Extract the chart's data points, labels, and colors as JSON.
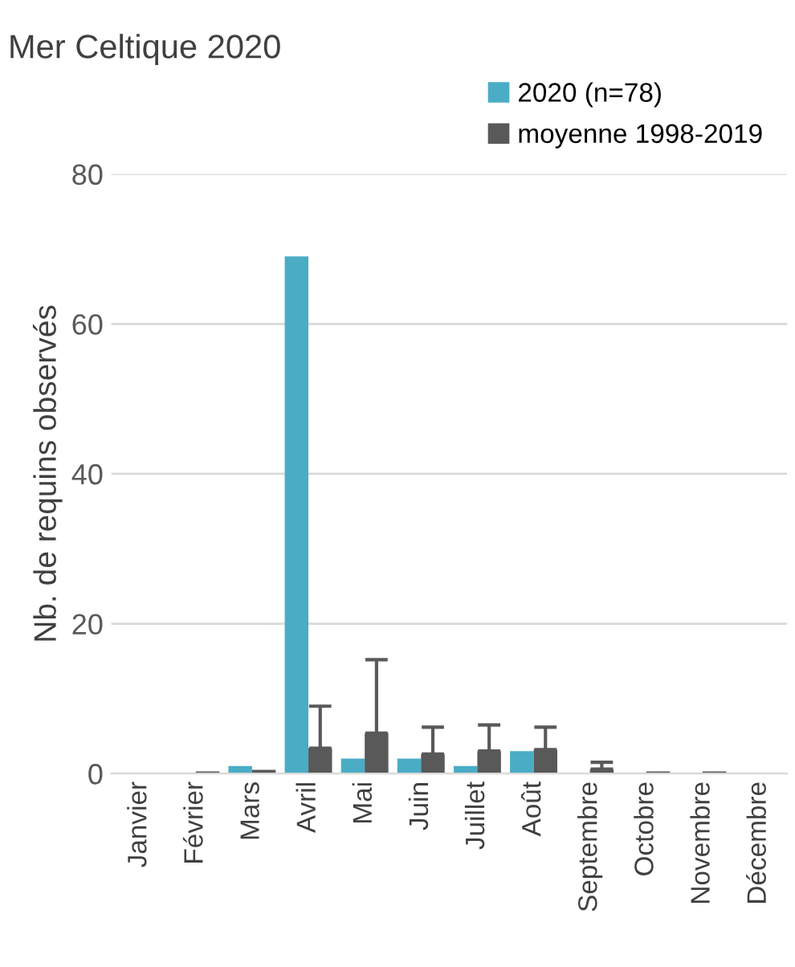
{
  "chart_data": {
    "type": "bar",
    "title": "Mer Celtique 2020",
    "ylabel": "Nb. de requins observés",
    "categories": [
      "Janvier",
      "Février",
      "Mars",
      "Avril",
      "Mai",
      "Juin",
      "Juillet",
      "Août",
      "Septembre",
      "Octobre",
      "Novembre",
      "Décembre"
    ],
    "series": [
      {
        "name": "2020 (n=78)",
        "color": "#4bacc6",
        "values": [
          0,
          0,
          1,
          69,
          2,
          2,
          1,
          3,
          0,
          0,
          0,
          0
        ]
      },
      {
        "name": "moyenne 1998-2019",
        "color": "#595959",
        "values": [
          0,
          0.3,
          0.5,
          3.4,
          5.4,
          2.6,
          3.0,
          3.2,
          0.6,
          0.3,
          0.3,
          0
        ],
        "errors": [
          null,
          null,
          null,
          [
            3.4,
            9.0
          ],
          [
            5.4,
            15.2
          ],
          [
            2.6,
            6.2
          ],
          [
            3.0,
            6.5
          ],
          [
            3.2,
            6.2
          ],
          [
            0.6,
            1.5
          ],
          null,
          null,
          null
        ]
      }
    ],
    "ylim": [
      0,
      80
    ],
    "yticks": [
      0,
      20,
      40,
      60,
      80
    ],
    "grid": "y",
    "legend": "top right"
  }
}
